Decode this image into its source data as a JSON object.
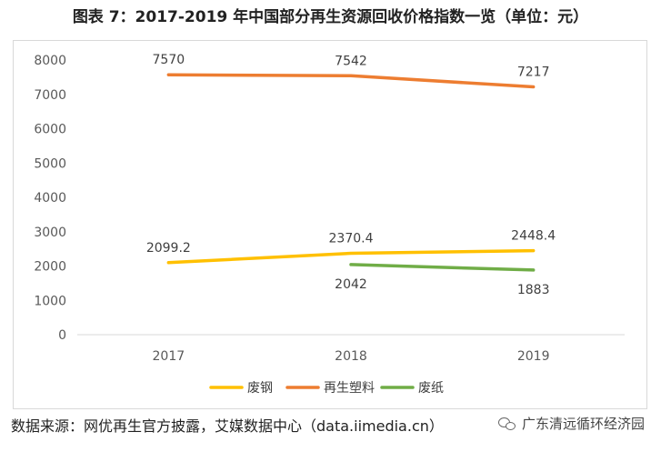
{
  "title": "图表 7：2017-2019 年中国部分再生资源回收价格指数一览（单位：元）",
  "source": "数据来源：网优再生官方披露，艾媒数据中心（data.iimedia.cn）",
  "watermark": "广东清远循环经济园",
  "watermark_icon": "wechat-icon",
  "chart_data": {
    "type": "line",
    "x": [
      "2017",
      "2018",
      "2019"
    ],
    "ylim": [
      0,
      8000
    ],
    "yticks": [
      0,
      1000,
      2000,
      3000,
      4000,
      5000,
      6000,
      7000,
      8000
    ],
    "grid": false,
    "legend_position": "bottom",
    "series": [
      {
        "name": "废钢",
        "color": "#FFC000",
        "values": [
          2099.2,
          2370.4,
          2448.4
        ],
        "labels": [
          "2099.2",
          "2370.4",
          "2448.4"
        ],
        "label_position": "above"
      },
      {
        "name": "再生塑料",
        "color": "#ED7D31",
        "values": [
          7570,
          7542,
          7217
        ],
        "labels": [
          "7570",
          "7542",
          "7217"
        ],
        "label_position": "above"
      },
      {
        "name": "废纸",
        "color": "#70AD47",
        "values": [
          null,
          2042,
          1883
        ],
        "labels": [
          null,
          "2042",
          "1883"
        ],
        "label_position": "below"
      }
    ]
  }
}
